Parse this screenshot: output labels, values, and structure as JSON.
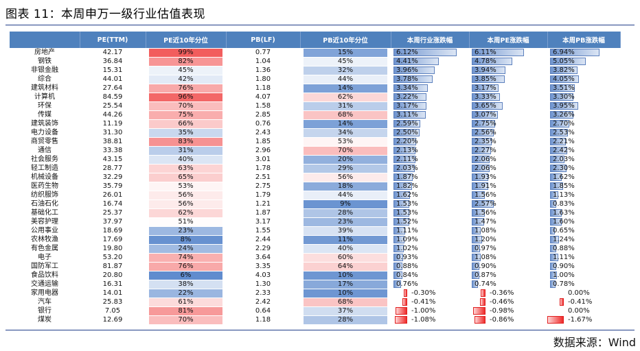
{
  "title": "图表 11：本周申万一级行业估值表现",
  "source": "数据来源：Wind",
  "headers": [
    "",
    "PE(TTM)",
    "PE近10年分位",
    "PB(LF)",
    "PB近10年分位",
    "本周行业涨跌幅",
    "本周PE涨跌幅",
    "本周PB涨跌幅"
  ],
  "colors": {
    "header": "#4f81bd",
    "high": "#f25a5a",
    "low": "#4a7cc7",
    "bar_pos": "#6f94cf",
    "bar_neg": "#ee2b2b"
  },
  "rows": [
    {
      "name": "房地产",
      "pe": "42.17",
      "pe_pct": "99%",
      "pb": "0.77",
      "pb_pct": "15%",
      "ind": "6.12%",
      "pe_chg": "6.11%",
      "pb_chg": "6.94%"
    },
    {
      "name": "钢铁",
      "pe": "36.84",
      "pe_pct": "82%",
      "pb": "1.04",
      "pb_pct": "45%",
      "ind": "4.41%",
      "pe_chg": "4.78%",
      "pb_chg": "5.05%"
    },
    {
      "name": "非银金融",
      "pe": "15.31",
      "pe_pct": "45%",
      "pb": "1.36",
      "pb_pct": "32%",
      "ind": "3.96%",
      "pe_chg": "3.94%",
      "pb_chg": "3.82%"
    },
    {
      "name": "综合",
      "pe": "44.01",
      "pe_pct": "42%",
      "pb": "1.80",
      "pb_pct": "44%",
      "ind": "3.78%",
      "pe_chg": "3.85%",
      "pb_chg": "4.05%"
    },
    {
      "name": "建筑材料",
      "pe": "27.64",
      "pe_pct": "76%",
      "pb": "1.18",
      "pb_pct": "14%",
      "ind": "3.34%",
      "pe_chg": "3.17%",
      "pb_chg": "3.51%"
    },
    {
      "name": "计算机",
      "pe": "84.59",
      "pe_pct": "96%",
      "pb": "4.07",
      "pb_pct": "62%",
      "ind": "3.22%",
      "pe_chg": "3.33%",
      "pb_chg": "3.30%"
    },
    {
      "name": "环保",
      "pe": "25.54",
      "pe_pct": "70%",
      "pb": "1.58",
      "pb_pct": "31%",
      "ind": "3.17%",
      "pe_chg": "3.65%",
      "pb_chg": "3.95%"
    },
    {
      "name": "传媒",
      "pe": "44.26",
      "pe_pct": "75%",
      "pb": "2.85",
      "pb_pct": "68%",
      "ind": "3.11%",
      "pe_chg": "3.07%",
      "pb_chg": "3.26%"
    },
    {
      "name": "建筑装饰",
      "pe": "11.19",
      "pe_pct": "66%",
      "pb": "0.76",
      "pb_pct": "14%",
      "ind": "2.59%",
      "pe_chg": "2.75%",
      "pb_chg": "2.70%"
    },
    {
      "name": "电力设备",
      "pe": "31.30",
      "pe_pct": "35%",
      "pb": "2.43",
      "pb_pct": "34%",
      "ind": "2.50%",
      "pe_chg": "2.56%",
      "pb_chg": "2.53%"
    },
    {
      "name": "商贸零售",
      "pe": "38.81",
      "pe_pct": "83%",
      "pb": "1.85",
      "pb_pct": "53%",
      "ind": "2.20%",
      "pe_chg": "2.35%",
      "pb_chg": "2.21%"
    },
    {
      "name": "通信",
      "pe": "33.38",
      "pe_pct": "31%",
      "pb": "2.96",
      "pb_pct": "70%",
      "ind": "2.13%",
      "pe_chg": "2.27%",
      "pb_chg": "2.42%"
    },
    {
      "name": "社会服务",
      "pe": "43.15",
      "pe_pct": "40%",
      "pb": "3.01",
      "pb_pct": "20%",
      "ind": "2.11%",
      "pe_chg": "2.06%",
      "pb_chg": "2.03%"
    },
    {
      "name": "轻工制造",
      "pe": "28.77",
      "pe_pct": "63%",
      "pb": "1.78",
      "pb_pct": "29%",
      "ind": "2.03%",
      "pe_chg": "2.06%",
      "pb_chg": "2.30%"
    },
    {
      "name": "机械设备",
      "pe": "32.29",
      "pe_pct": "65%",
      "pb": "2.51",
      "pb_pct": "56%",
      "ind": "1.87%",
      "pe_chg": "1.93%",
      "pb_chg": "1.62%"
    },
    {
      "name": "医药生物",
      "pe": "35.79",
      "pe_pct": "53%",
      "pb": "2.75",
      "pb_pct": "18%",
      "ind": "1.82%",
      "pe_chg": "1.91%",
      "pb_chg": "1.85%"
    },
    {
      "name": "纺织服饰",
      "pe": "26.01",
      "pe_pct": "56%",
      "pb": "1.79",
      "pb_pct": "44%",
      "ind": "1.62%",
      "pe_chg": "1.56%",
      "pb_chg": "1.13%"
    },
    {
      "name": "石油石化",
      "pe": "16.74",
      "pe_pct": "56%",
      "pb": "1.21",
      "pb_pct": "9%",
      "ind": "1.53%",
      "pe_chg": "2.57%",
      "pb_chg": "0.83%"
    },
    {
      "name": "基础化工",
      "pe": "25.37",
      "pe_pct": "62%",
      "pb": "1.87",
      "pb_pct": "28%",
      "ind": "1.53%",
      "pe_chg": "1.56%",
      "pb_chg": "1.63%"
    },
    {
      "name": "美容护理",
      "pe": "37.97",
      "pe_pct": "51%",
      "pb": "3.17",
      "pb_pct": "23%",
      "ind": "1.52%",
      "pe_chg": "1.47%",
      "pb_chg": "1.60%"
    },
    {
      "name": "公用事业",
      "pe": "18.69",
      "pe_pct": "23%",
      "pb": "1.55",
      "pb_pct": "39%",
      "ind": "1.11%",
      "pe_chg": "1.08%",
      "pb_chg": "0.65%"
    },
    {
      "name": "农林牧渔",
      "pe": "17.69",
      "pe_pct": "8%",
      "pb": "2.44",
      "pb_pct": "11%",
      "ind": "1.09%",
      "pe_chg": "1.20%",
      "pb_chg": "1.24%"
    },
    {
      "name": "有色金属",
      "pe": "19.80",
      "pe_pct": "24%",
      "pb": "2.29",
      "pb_pct": "40%",
      "ind": "1.02%",
      "pe_chg": "0.97%",
      "pb_chg": "0.88%"
    },
    {
      "name": "电子",
      "pe": "53.20",
      "pe_pct": "74%",
      "pb": "3.64",
      "pb_pct": "60%",
      "ind": "0.93%",
      "pe_chg": "1.08%",
      "pb_chg": "1.11%"
    },
    {
      "name": "国防军工",
      "pe": "81.87",
      "pe_pct": "76%",
      "pb": "3.35",
      "pb_pct": "64%",
      "ind": "0.88%",
      "pe_chg": "0.90%",
      "pb_chg": "0.90%"
    },
    {
      "name": "食品饮料",
      "pe": "20.80",
      "pe_pct": "6%",
      "pb": "4.03",
      "pb_pct": "10%",
      "ind": "0.84%",
      "pe_chg": "0.87%",
      "pb_chg": "1.00%"
    },
    {
      "name": "交通运输",
      "pe": "16.31",
      "pe_pct": "38%",
      "pb": "1.30",
      "pb_pct": "17%",
      "ind": "0.76%",
      "pe_chg": "0.74%",
      "pb_chg": "0.78%"
    },
    {
      "name": "家用电器",
      "pe": "14.01",
      "pe_pct": "22%",
      "pb": "2.33",
      "pb_pct": "10%",
      "ind": "-0.30%",
      "pe_chg": "-0.36%",
      "pb_chg": "0.00%"
    },
    {
      "name": "汽车",
      "pe": "25.83",
      "pe_pct": "61%",
      "pb": "2.42",
      "pb_pct": "68%",
      "ind": "-0.41%",
      "pe_chg": "-0.46%",
      "pb_chg": "-0.41%"
    },
    {
      "name": "银行",
      "pe": "7.05",
      "pe_pct": "81%",
      "pb": "0.64",
      "pb_pct": "37%",
      "ind": "-1.00%",
      "pe_chg": "-0.98%",
      "pb_chg": "0.00%"
    },
    {
      "name": "煤炭",
      "pe": "12.69",
      "pe_pct": "70%",
      "pb": "1.18",
      "pb_pct": "28%",
      "ind": "-1.08%",
      "pe_chg": "-0.86%",
      "pb_chg": "-1.67%"
    }
  ]
}
